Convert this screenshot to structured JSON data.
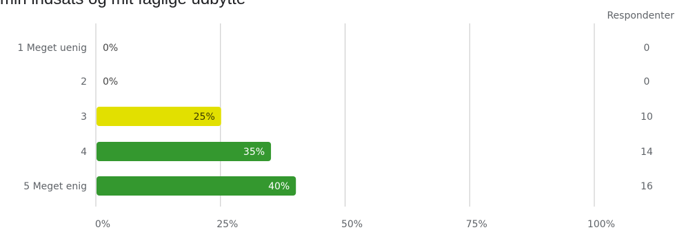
{
  "chart_data": {
    "type": "bar",
    "orientation": "horizontal",
    "title": "min indsats og mit faglige udbytte",
    "categories": [
      "1 Meget uenig",
      "2",
      "3",
      "4",
      "5 Meget enig"
    ],
    "values": [
      0,
      0,
      25,
      35,
      40
    ],
    "value_labels": [
      "0%",
      "0%",
      "25%",
      "35%",
      "40%"
    ],
    "respondents_header": "Respondenter",
    "respondents": [
      "0",
      "0",
      "10",
      "14",
      "16"
    ],
    "bar_colors": [
      "#e0e000",
      "#e0e000",
      "#e2e000",
      "#34982f",
      "#34982f"
    ],
    "label_colors": [
      "#444444",
      "#444444",
      "#3a3a00",
      "#ffffff",
      "#ffffff"
    ],
    "xlim": [
      0,
      100
    ],
    "x_ticks": [
      "0%",
      "25%",
      "50%",
      "75%",
      "100%"
    ],
    "grid": true
  }
}
